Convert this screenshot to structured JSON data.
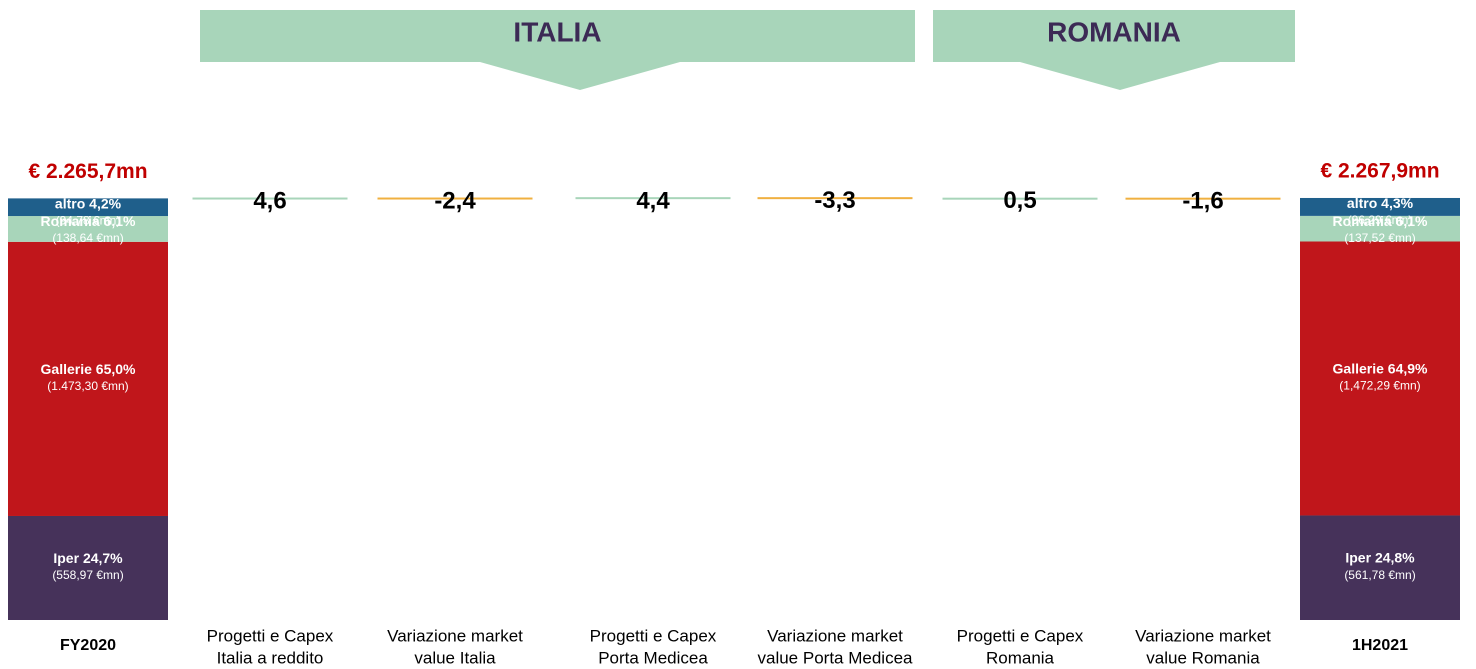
{
  "chart_data": {
    "type": "waterfall",
    "groups": [
      "ITALIA",
      "ROMANIA"
    ],
    "group_color": "#a8d5ba",
    "ylim": [
      0,
      2300
    ],
    "steps": [
      {
        "category": [
          "FY2020"
        ],
        "total_label": "€ 2.265,7mn",
        "segments": [
          {
            "name": "Iper",
            "share": 24.7,
            "share_label": "24,7%",
            "value": 558.97,
            "value_label": "(558,97 €mn)",
            "color": "#46325a"
          },
          {
            "name": "Gallerie",
            "share": 65.0,
            "share_label": "65,0%",
            "value": 1473.3,
            "value_label": "(1.473,30 €mn)",
            "color": "#c0161b"
          },
          {
            "name": "Romania",
            "share": 6.1,
            "share_label": "6,1%",
            "value": 138.64,
            "value_label": "(138,64 €mn)",
            "color": "#a8d5ba"
          },
          {
            "name": "altro",
            "share": 4.2,
            "share_label": "4,2%",
            "value": 94.78,
            "value_label": "(94,78 €mn)",
            "color": "#1f5f8b"
          }
        ]
      },
      {
        "category": [
          "Progetti e Capex",
          "Italia a reddito"
        ],
        "value": 4.6,
        "value_label": "4,6",
        "color": "#a8d5ba"
      },
      {
        "category": [
          "Variazione market",
          "value Italia"
        ],
        "value": -2.4,
        "value_label": "-2,4",
        "color": "#f0b040"
      },
      {
        "category": [
          "Progetti e Capex",
          "Porta Medicea"
        ],
        "value": 4.4,
        "value_label": "4,4",
        "color": "#a8d5ba"
      },
      {
        "category": [
          "Variazione market",
          "value Porta Medicea"
        ],
        "value": -3.3,
        "value_label": "-3,3",
        "color": "#f0b040"
      },
      {
        "category": [
          "Progetti e Capex",
          "Romania"
        ],
        "value": 0.5,
        "value_label": "0,5",
        "color": "#a8d5ba"
      },
      {
        "category": [
          "Variazione market",
          "value Romania"
        ],
        "value": -1.6,
        "value_label": "-1,6",
        "color": "#f0b040"
      },
      {
        "category": [
          "1H2021"
        ],
        "total_label": "€ 2.267,9mn",
        "segments": [
          {
            "name": "Iper",
            "share": 24.8,
            "share_label": "24,8%",
            "value": 561.78,
            "value_label": "(561,78 €mn)",
            "color": "#46325a"
          },
          {
            "name": "Gallerie",
            "share": 64.9,
            "share_label": "64,9%",
            "value": 1472.29,
            "value_label": "(1,472,29 €mn)",
            "color": "#c0161b"
          },
          {
            "name": "Romania",
            "share": 6.1,
            "share_label": "6,1%",
            "value": 137.52,
            "value_label": "(137,52 €mn)",
            "color": "#a8d5ba"
          },
          {
            "name": "altro",
            "share": 4.3,
            "share_label": "4,3%",
            "value": 96.29,
            "value_label": "(96,29 €mn)",
            "color": "#1f5f8b"
          }
        ]
      }
    ]
  }
}
